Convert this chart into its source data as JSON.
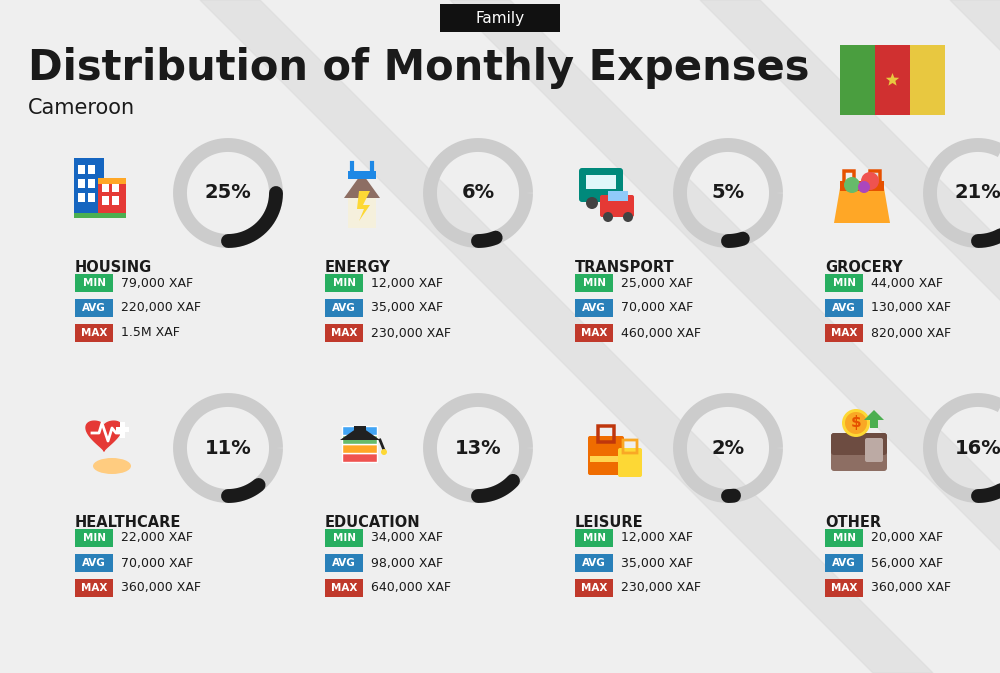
{
  "title": "Distribution of Monthly Expenses",
  "subtitle": "Cameroon",
  "tag": "Family",
  "bg_color": "#efefef",
  "categories": [
    {
      "name": "HOUSING",
      "pct": 25,
      "min": "79,000 XAF",
      "avg": "220,000 XAF",
      "max": "1.5M XAF",
      "row": 0,
      "col": 0
    },
    {
      "name": "ENERGY",
      "pct": 6,
      "min": "12,000 XAF",
      "avg": "35,000 XAF",
      "max": "230,000 XAF",
      "row": 0,
      "col": 1
    },
    {
      "name": "TRANSPORT",
      "pct": 5,
      "min": "25,000 XAF",
      "avg": "70,000 XAF",
      "max": "460,000 XAF",
      "row": 0,
      "col": 2
    },
    {
      "name": "GROCERY",
      "pct": 21,
      "min": "44,000 XAF",
      "avg": "130,000 XAF",
      "max": "820,000 XAF",
      "row": 0,
      "col": 3
    },
    {
      "name": "HEALTHCARE",
      "pct": 11,
      "min": "22,000 XAF",
      "avg": "70,000 XAF",
      "max": "360,000 XAF",
      "row": 1,
      "col": 0
    },
    {
      "name": "EDUCATION",
      "pct": 13,
      "min": "34,000 XAF",
      "avg": "98,000 XAF",
      "max": "640,000 XAF",
      "row": 1,
      "col": 1
    },
    {
      "name": "LEISURE",
      "pct": 2,
      "min": "12,000 XAF",
      "avg": "35,000 XAF",
      "max": "230,000 XAF",
      "row": 1,
      "col": 2
    },
    {
      "name": "OTHER",
      "pct": 16,
      "min": "20,000 XAF",
      "avg": "56,000 XAF",
      "max": "360,000 XAF",
      "row": 1,
      "col": 3
    }
  ],
  "min_color": "#27ae60",
  "avg_color": "#2980b9",
  "max_color": "#c0392b",
  "text_color": "#1a1a1a",
  "arc_dark": "#1a1a1a",
  "arc_light": "#cccccc",
  "flag_colors": [
    "#4a9e3f",
    "#d03030",
    "#e8c840"
  ],
  "tag_bg": "#111111",
  "tag_fg": "#ffffff",
  "stripe_color": "#d8d8d8",
  "stripe_alpha": 0.5
}
